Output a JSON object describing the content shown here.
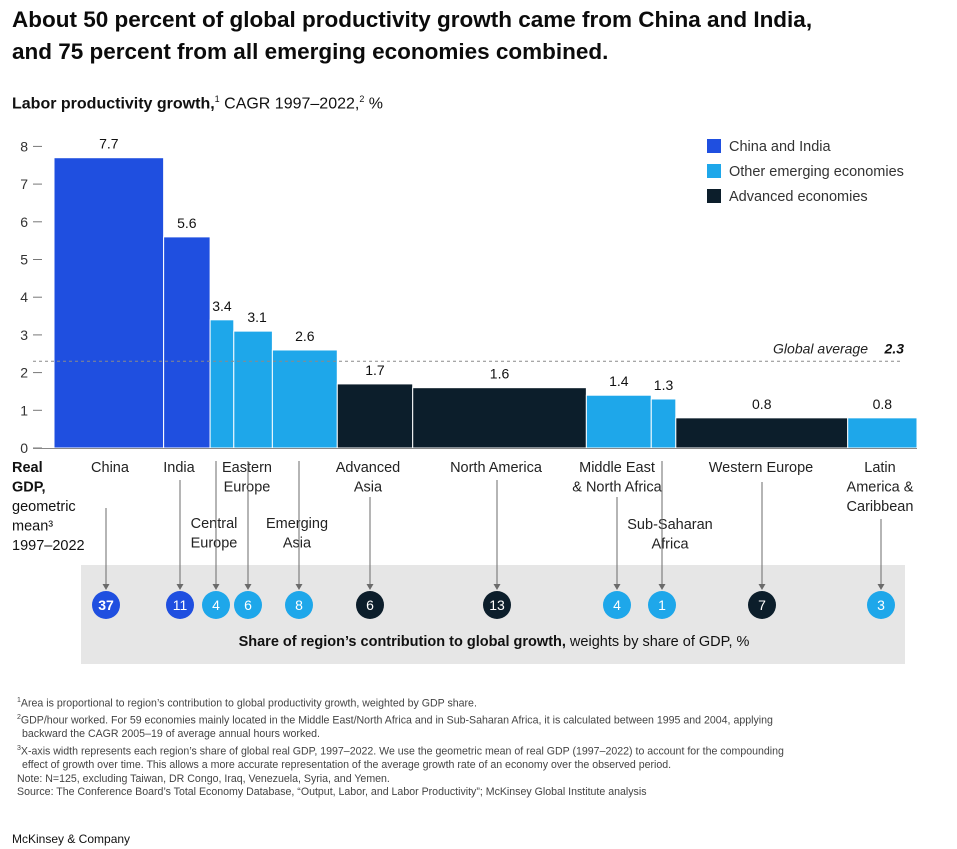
{
  "headline_line1": "About 50 percent of global productivity growth came from China and India,",
  "headline_line2": "and 75 percent from all emerging economies combined.",
  "subtitle": {
    "bold": "Labor productivity growth,",
    "sup1": "1",
    "rest": " CAGR 1997–2022,",
    "sup2": "2",
    "unit": " %"
  },
  "colors": {
    "China and India": "#1f4fe0",
    "Other emerging economies": "#1ea7ea",
    "Advanced economies": "#0c1e2b",
    "panel": "#e6e6e6"
  },
  "chart_data": {
    "type": "bar",
    "variable_width": true,
    "y_axis": {
      "ylim": [
        0,
        8
      ],
      "ticks": [
        "0",
        "1",
        "2",
        "3",
        "4",
        "5",
        "6",
        "7",
        "8"
      ]
    },
    "reference_line": {
      "label": "Global average",
      "value": 2.3,
      "value_label": "2.3"
    },
    "legend": {
      "position": "top-right",
      "entries": [
        "China and India",
        "Other emerging economies",
        "Advanced economies"
      ]
    },
    "row_label": [
      "Real",
      "GDP,",
      "geometric",
      "mean³",
      "1997–2022"
    ],
    "panel_label": {
      "bold": "Share of region’s contribution to global growth,",
      "rest": " weights by share of GDP, %"
    },
    "bars": [
      {
        "region": [
          "China"
        ],
        "group": "China and India",
        "value": 7.7,
        "value_label": "7.7",
        "gdp_weight": 12.5,
        "share": 37
      },
      {
        "region": [
          "India"
        ],
        "group": "China and India",
        "value": 5.6,
        "value_label": "5.6",
        "gdp_weight": 5.3,
        "share": 11
      },
      {
        "region": [
          "Central",
          "Europe"
        ],
        "group": "Other emerging economies",
        "value": 3.4,
        "value_label": "3.4",
        "gdp_weight": 2.7,
        "share": 4
      },
      {
        "region": [
          "Eastern",
          "Europe"
        ],
        "group": "Other emerging economies",
        "value": 3.1,
        "value_label": "3.1",
        "gdp_weight": 4.4,
        "share": 6
      },
      {
        "region": [
          "Emerging",
          "Asia"
        ],
        "group": "Other emerging economies",
        "value": 2.6,
        "value_label": "2.6",
        "gdp_weight": 7.4,
        "share": 8
      },
      {
        "region": [
          "Advanced",
          "Asia"
        ],
        "group": "Advanced economies",
        "value": 1.7,
        "value_label": "1.7",
        "gdp_weight": 8.6,
        "share": 6
      },
      {
        "region": [
          "North America"
        ],
        "group": "Advanced economies",
        "value": 1.6,
        "value_label": "1.6",
        "gdp_weight": 19.8,
        "share": 13
      },
      {
        "region": [
          "Middle East",
          "& North Africa"
        ],
        "group": "Other emerging economies",
        "value": 1.4,
        "value_label": "1.4",
        "gdp_weight": 7.4,
        "share": 4
      },
      {
        "region": [
          "Sub-Saharan",
          "Africa"
        ],
        "group": "Other emerging economies",
        "value": 1.3,
        "value_label": "1.3",
        "gdp_weight": 2.8,
        "share": 1
      },
      {
        "region": [
          "Western Europe"
        ],
        "group": "Advanced economies",
        "value": 0.8,
        "value_label": "0.8",
        "gdp_weight": 19.6,
        "share": 7
      },
      {
        "region": [
          "Latin",
          "America &",
          "Caribbean"
        ],
        "group": "Other emerging economies",
        "value": 0.8,
        "value_label": "0.8",
        "gdp_weight": 7.9,
        "share": 3
      }
    ]
  },
  "footnotes": [
    {
      "sup": "1",
      "text": "Area is proportional to region’s contribution to global productivity growth, weighted by GDP share."
    },
    {
      "sup": "2",
      "text": "GDP/hour worked. For 59 economies mainly located in the Middle East/North Africa and in Sub-Saharan Africa, it is calculated between 1995 and 2004, applying"
    },
    {
      "sup": "",
      "text": "backward the CAGR 2005–19 of average annual hours worked."
    },
    {
      "sup": "3",
      "text": "X-axis width represents each region’s share of global real GDP, 1997–2022. We use the geometric mean of real GDP (1997–2022) to account for the compounding"
    },
    {
      "sup": "",
      "text": "effect of growth over time. This allows a more accurate representation of the average growth rate of an economy over the observed period."
    },
    {
      "sup": "",
      "text": "Note: N=125, excluding Taiwan, DR Congo, Iraq, Venezuela, Syria, and Yemen."
    },
    {
      "sup": "",
      "text": "Source: The Conference Board’s Total Economy Database, “Output, Labor, and Labor Productivity”; McKinsey Global Institute analysis"
    }
  ],
  "brand": "McKinsey & Company"
}
